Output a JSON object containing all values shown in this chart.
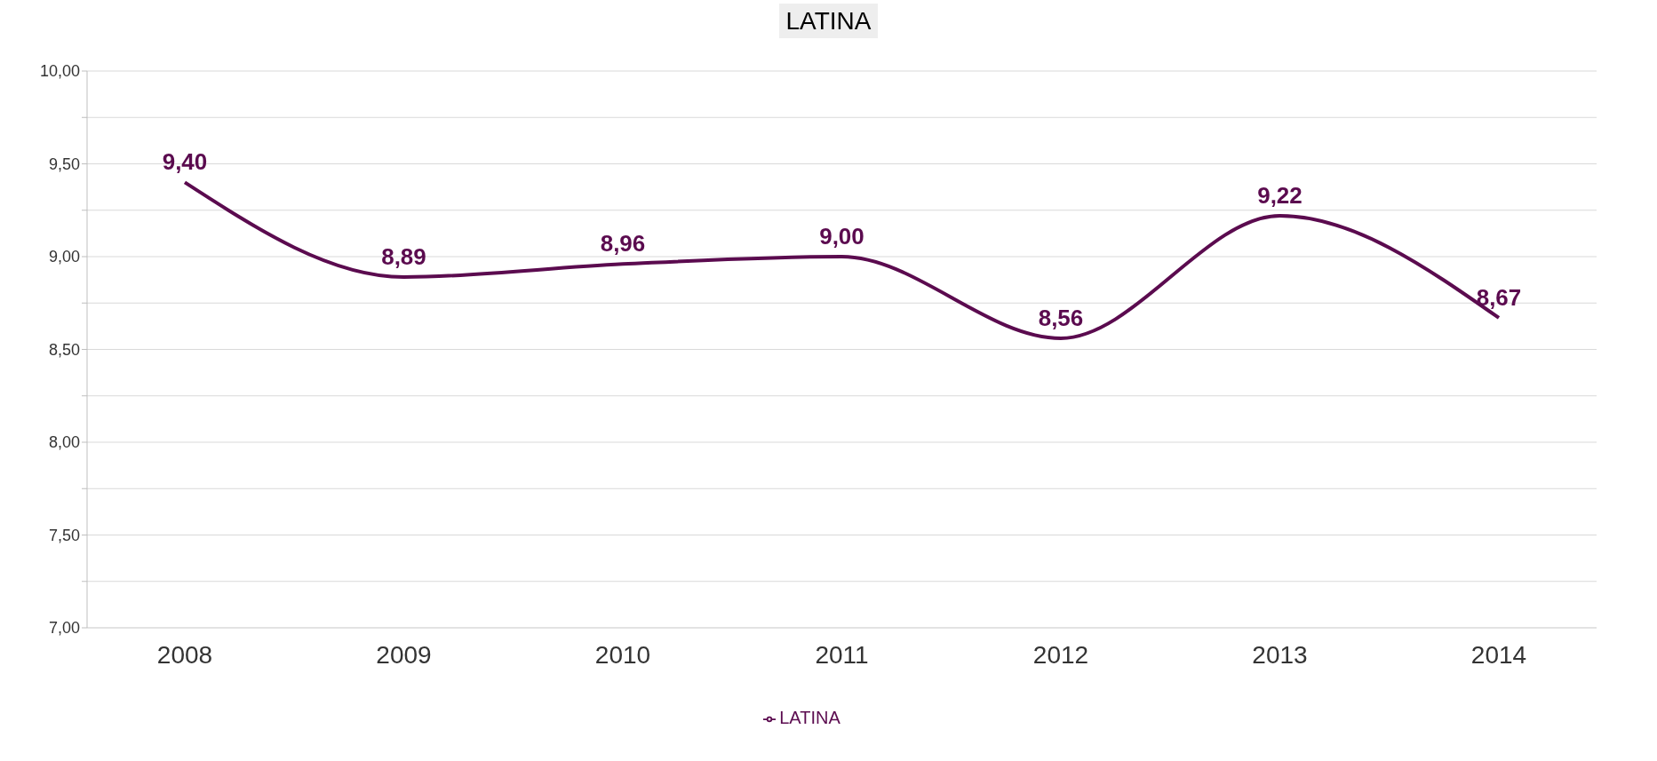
{
  "chart_data": {
    "type": "line",
    "title": "LATINA",
    "categories": [
      "2008",
      "2009",
      "2010",
      "2011",
      "2012",
      "2013",
      "2014"
    ],
    "series": [
      {
        "name": "LATINA",
        "color": "#5b0b4f",
        "values": [
          9.4,
          8.89,
          8.96,
          9.0,
          8.56,
          9.22,
          8.67
        ],
        "value_labels": [
          "9,40",
          "8,89",
          "8,96",
          "9,00",
          "8,56",
          "9,22",
          "8,67"
        ]
      }
    ],
    "ylim": [
      7,
      10
    ],
    "yticks": [
      {
        "value": 7,
        "label": "7,00"
      },
      {
        "value": 7.25,
        "label": null
      },
      {
        "value": 7.5,
        "label": "7,50"
      },
      {
        "value": 7.75,
        "label": null
      },
      {
        "value": 8,
        "label": "8,00"
      },
      {
        "value": 8.25,
        "label": null
      },
      {
        "value": 8.5,
        "label": "8,50"
      },
      {
        "value": 8.75,
        "label": null
      },
      {
        "value": 9,
        "label": "9,00"
      },
      {
        "value": 9.25,
        "label": null
      },
      {
        "value": 9.5,
        "label": "9,50"
      },
      {
        "value": 9.75,
        "label": null
      },
      {
        "value": 10,
        "label": "10,00"
      }
    ],
    "grid": "y",
    "legend": "bottom",
    "marker": "none",
    "line_style": "solid"
  }
}
